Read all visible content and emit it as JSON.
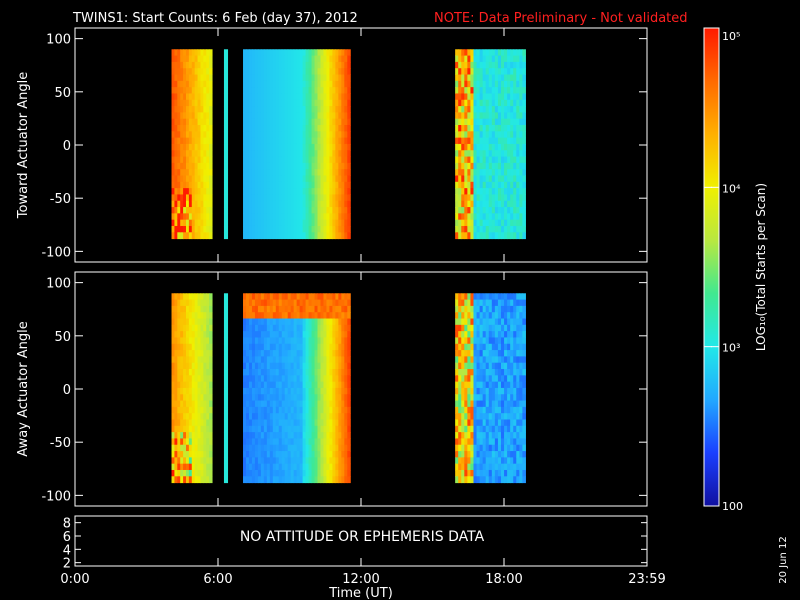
{
  "title": {
    "main": "TWINS1: Start Counts:  6 Feb (day  37), 2012",
    "note": "NOTE: Data Preliminary - Not validated"
  },
  "footer_date": "20 Jun 12",
  "colors": {
    "background": "#000000",
    "axes": "#ffffff",
    "note": "#ff2020",
    "colormap": [
      "#1010a0",
      "#1a40ff",
      "#22a8ff",
      "#22e8e8",
      "#40e890",
      "#b8e840",
      "#f0f000",
      "#ffb000",
      "#ff6a00",
      "#ff1a00"
    ]
  },
  "chart_data": [
    {
      "type": "heatmap",
      "name": "toward",
      "ylabel": "Toward Actuator Angle",
      "xlim": [
        0,
        24
      ],
      "ylim": [
        -110,
        110
      ],
      "yticks": [
        "100",
        "50",
        "0",
        "-50",
        "-100"
      ],
      "ytick_values": [
        100,
        50,
        0,
        -50,
        -100
      ],
      "y_extent": [
        -88,
        90
      ],
      "value_units": "LOG10(Total Starts per Scan)",
      "segments": [
        {
          "x_start": 4.05,
          "x_end": 5.75,
          "level": 0.72,
          "pattern": "warm-edge"
        },
        {
          "x_start": 6.25,
          "x_end": 6.4,
          "level": 0.35,
          "pattern": "solid",
          "y_extent": [
            -88,
            90
          ]
        },
        {
          "x_start": 7.05,
          "x_end": 11.55,
          "level": 0.28,
          "pattern": "blue-to-orange"
        },
        {
          "x_start": 15.95,
          "x_end": 18.9,
          "level": 0.5,
          "pattern": "noisy-warm"
        }
      ]
    },
    {
      "type": "heatmap",
      "name": "away",
      "ylabel": "Away Actuator Angle",
      "xlim": [
        0,
        24
      ],
      "ylim": [
        -110,
        110
      ],
      "yticks": [
        "100",
        "50",
        "0",
        "-50",
        "-100"
      ],
      "ytick_values": [
        100,
        50,
        0,
        -50,
        -100
      ],
      "y_extent": [
        -88,
        90
      ],
      "value_units": "LOG10(Total Starts per Scan)",
      "segments": [
        {
          "x_start": 4.05,
          "x_end": 5.75,
          "level": 0.62,
          "pattern": "warm-edge"
        },
        {
          "x_start": 6.25,
          "x_end": 6.4,
          "level": 0.35,
          "pattern": "solid"
        },
        {
          "x_start": 7.05,
          "x_end": 11.55,
          "level": 0.2,
          "pattern": "blue-hot-top"
        },
        {
          "x_start": 15.95,
          "x_end": 18.9,
          "level": 0.3,
          "pattern": "noisy-cool"
        }
      ]
    },
    {
      "type": "line",
      "name": "attitude",
      "yticks": [
        "8",
        "6",
        "4",
        "2"
      ],
      "ytick_values": [
        8,
        6,
        4,
        2
      ],
      "ylim": [
        1.5,
        9
      ],
      "message": "NO ATTITUDE OR EPHEMERIS DATA",
      "xlim": [
        0,
        24
      ],
      "xticks": [
        "0:00",
        "6:00",
        "12:00",
        "18:00",
        "23:59"
      ],
      "xtick_values": [
        0,
        6,
        12,
        18,
        24
      ],
      "xlabel": "Time (UT)"
    }
  ],
  "colorbar": {
    "label": "LOG₁₀(Total Starts per Scan)",
    "scale": "log",
    "range": [
      100,
      100000
    ],
    "ticks": [
      {
        "label": "10⁵",
        "value": 100000
      },
      {
        "label": "10⁴",
        "value": 10000
      },
      {
        "label": "10³",
        "value": 1000
      },
      {
        "label": "100",
        "value": 100
      }
    ]
  }
}
